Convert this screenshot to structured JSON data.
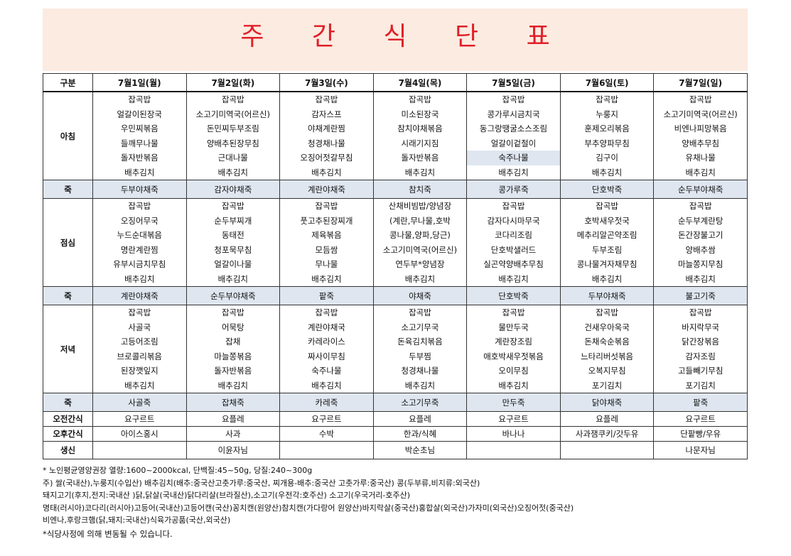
{
  "title": "주 간 식 단 표",
  "columns_header": "구분",
  "days": [
    "7월1일(월)",
    "7월2일(화)",
    "7월3일(수)",
    "7월4일(목)",
    "7월5일(금)",
    "7월6일(토)",
    "7월7일(일)"
  ],
  "breakfast": {
    "label": "아침",
    "dishes": [
      [
        "잡곡밥",
        "얼갈이된장국",
        "우민찌볶음",
        "들깨무나물",
        "돌자반볶음",
        "배추김치"
      ],
      [
        "잡곡밥",
        "소고기미역국(어르신)",
        "돈민찌두부조림",
        "양배추된장무침",
        "근대나물",
        "배추김치"
      ],
      [
        "잡곡밥",
        "감자스프",
        "야채계란찜",
        "청경채나물",
        "오징어젓갈무침",
        "배추김치"
      ],
      [
        "잡곡밥",
        "미소된장국",
        "참치야채볶음",
        "시래기지짐",
        "돌자반볶음",
        "배추김치"
      ],
      [
        "잡곡밥",
        "콩가루시금치국",
        "동그랑땡굴소스조림",
        "얼갈이겉절이",
        "숙주나물",
        "배추김치"
      ],
      [
        "잡곡밥",
        "누룽지",
        "훈제오리볶음",
        "부추양파무침",
        "김구이",
        "배추김치"
      ],
      [
        "잡곡밥",
        "소고기미역국(어르신)",
        "비엔나피망볶음",
        "양배추무침",
        "유채나물",
        "배추김치"
      ]
    ]
  },
  "porridge_label": "죽",
  "porridge_morning": [
    "두부야채죽",
    "감자야채죽",
    "계란야채죽",
    "참치죽",
    "콩가루죽",
    "단호박죽",
    "순두부야채죽"
  ],
  "lunch": {
    "label": "점심",
    "dishes": [
      [
        "잡곡밥",
        "오징어무국",
        "누드순대볶음",
        "명란계란찜",
        "유부시금치무침",
        "배추김치"
      ],
      [
        "잡곡밥",
        "순두부찌개",
        "동태전",
        "청포묵무침",
        "얼갈이나물",
        "배추김치"
      ],
      [
        "잡곡밥",
        "풋고추된장찌개",
        "제육볶음",
        "모듬쌈",
        "무나물",
        "배추김치"
      ],
      [
        "산채비빔밥/양념장",
        "(계란,무나물,호박",
        "콩나물,양파,당근)",
        "소고기미역국(어르신)",
        "연두부*양념장",
        "배추김치"
      ],
      [
        "잡곡밥",
        "감자다시마무국",
        "코다리조림",
        "단호박샐러드",
        "실곤약양배추무침",
        "배추김치"
      ],
      [
        "잡곡밥",
        "호박새우젓국",
        "메추리알곤약조림",
        "두부조림",
        "콩나물겨자채무침",
        "배추김치"
      ],
      [
        "잡곡밥",
        "순두부계란탕",
        "돈간장불고기",
        "양배추쌈",
        "마늘쫑지무침",
        "배추김치"
      ]
    ]
  },
  "porridge_lunch": [
    "계란야채죽",
    "순두부야채죽",
    "팥죽",
    "야채죽",
    "단호박죽",
    "두부야채죽",
    "불고기죽"
  ],
  "dinner": {
    "label": "저녁",
    "dishes": [
      [
        "잡곡밥",
        "사골국",
        "고등어조림",
        "브로콜리볶음",
        "된장깻잎지",
        "배추김치"
      ],
      [
        "잡곡밥",
        "어묵탕",
        "잡채",
        "마늘쫑볶음",
        "돌자반볶음",
        "배추김치"
      ],
      [
        "잡곡밥",
        "계란야채국",
        "카레라이스",
        "짜사이무침",
        "숙주나물",
        "배추김치"
      ],
      [
        "잡곡밥",
        "소고기무국",
        "돈육김치볶음",
        "두부찜",
        "청경채나물",
        "배추김치"
      ],
      [
        "잡곡밥",
        "물만두국",
        "계란장조림",
        "애호박새우젓볶음",
        "오이무침",
        "배추김치"
      ],
      [
        "잡곡밥",
        "건새우아욱국",
        "돈채숙순볶음",
        "느타리버섯볶음",
        "오복지무침",
        "포기김치"
      ],
      [
        "잡곡밥",
        "바지락무국",
        "닭간장볶음",
        "감자조림",
        "고들빼기무침",
        "포기김치"
      ]
    ]
  },
  "porridge_dinner": [
    "사골죽",
    "잡채죽",
    "카레죽",
    "소고기무죽",
    "만두죽",
    "닭야채죽",
    "팥죽"
  ],
  "snack_am": {
    "label": "오전간식",
    "items": [
      "요구르트",
      "요플레",
      "요구르트",
      "요플레",
      "요구르트",
      "요플레",
      "요구르트"
    ]
  },
  "snack_pm": {
    "label": "오후간식",
    "items": [
      "아이스홍시",
      "사과",
      "수박",
      "한과/식혜",
      "바나나",
      "사과잼쿠키/갓두유",
      "단팥빵/우유"
    ]
  },
  "thanks": {
    "label": "생신",
    "items": [
      "",
      "이윤자님",
      "",
      "박순초님",
      "",
      "",
      "나문자님"
    ]
  },
  "notes": [
    "* 노인평균영양권장 열량:1600~2000kcal, 단백질:45~50g, 당질:240~300g",
    "주) 쌀(국내산),누룽지(수입산) 배추김치(배추:중국산고춧가루:중국산, 찌개용-배추:중국산 고춧가루:중국산) 콩(두부류,비지류:외국산)",
    "돼지고기(후지,전지:국내산 )닭,닭살(국내산)닭다리살(브라질산),소고기(우전각:호주산) 소고기(우국거리-호주산)",
    "명태(러시아)코다리(러시아)고등어(국내산)고등어캔(국산)꽁치캔(원양산)참치캔(가다랑어 원양산)바지락살(중국산)홍합살(외국산)가자미(외국산)오징어젓(중국산)",
    "비엔나,후랑크햄(닭,돼지:국내산)식육가공품(국산,외국산)"
  ],
  "footer": "*식당사정에 의해 변동될 수 있습니다."
}
